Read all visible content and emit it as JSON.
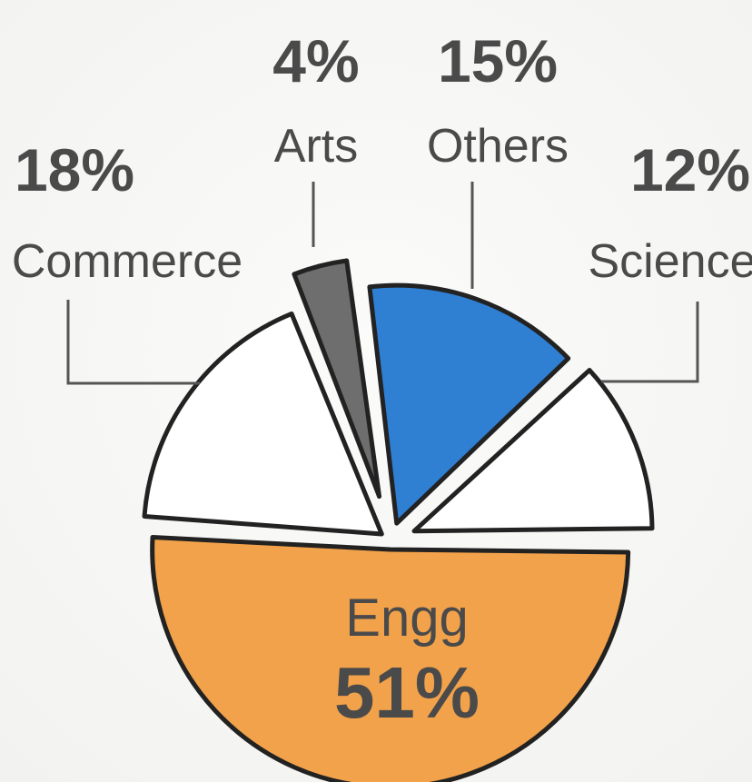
{
  "chart_data": {
    "type": "pie",
    "title": "",
    "slices": [
      {
        "category": "Engg",
        "value": 51,
        "label": "51%",
        "color": "#f2a24a"
      },
      {
        "category": "Commerce",
        "value": 18,
        "label": "18%",
        "color": "#ffffff"
      },
      {
        "category": "Arts",
        "value": 4,
        "label": "4%",
        "color": "#6e6e6e"
      },
      {
        "category": "Others",
        "value": 15,
        "label": "15%",
        "color": "#2f7fd2"
      },
      {
        "category": "Science",
        "value": 12,
        "label": "12%",
        "color": "#ffffff"
      }
    ],
    "outline_color": "#222222",
    "leader_color": "#555555",
    "text_color": "#4a4a4a"
  }
}
